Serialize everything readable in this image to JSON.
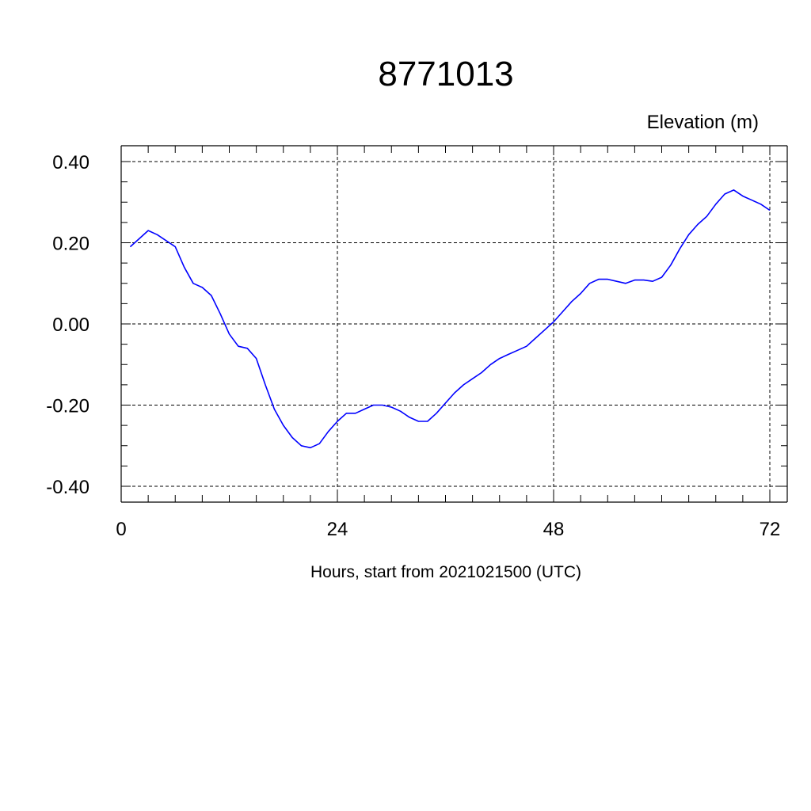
{
  "chart_data": {
    "type": "line",
    "title": "8771013",
    "ylabel": "Elevation (m)",
    "xlabel": "Hours, start from 2021021500 (UTC)",
    "xlim": [
      0,
      72
    ],
    "ylim": [
      -0.4,
      0.4
    ],
    "x_ticks": [
      0,
      24,
      48,
      72
    ],
    "x_tick_labels": [
      "0",
      "24",
      "48",
      "72"
    ],
    "y_ticks": [
      -0.4,
      -0.2,
      0.0,
      0.2,
      0.4
    ],
    "y_tick_labels": [
      "-0.40",
      "-0.20",
      "0.00",
      "0.20",
      "0.40"
    ],
    "grid": true,
    "line_color": "#0000ff",
    "series": [
      {
        "x": [
          1,
          2,
          3,
          4,
          5,
          6,
          7,
          8,
          9,
          10,
          11,
          12,
          13,
          14,
          15,
          16,
          17,
          18,
          19,
          20,
          21,
          22,
          23,
          24,
          25,
          26,
          27,
          28,
          29,
          30,
          31,
          32,
          33,
          34,
          35,
          36,
          37,
          38,
          39,
          40,
          41,
          42,
          43,
          44,
          45,
          46,
          47,
          48,
          49,
          50,
          51,
          52,
          53,
          54,
          55,
          56,
          57,
          58,
          59,
          60,
          61,
          62,
          63,
          64,
          65,
          66,
          67,
          68,
          69,
          70,
          71,
          72
        ],
        "y": [
          0.19,
          0.21,
          0.23,
          0.22,
          0.205,
          0.19,
          0.14,
          0.1,
          0.09,
          0.07,
          0.025,
          -0.025,
          -0.055,
          -0.06,
          -0.085,
          -0.15,
          -0.21,
          -0.25,
          -0.28,
          -0.3,
          -0.305,
          -0.295,
          -0.265,
          -0.24,
          -0.22,
          -0.22,
          -0.21,
          -0.2,
          -0.2,
          -0.205,
          -0.215,
          -0.23,
          -0.24,
          -0.24,
          -0.22,
          -0.195,
          -0.17,
          -0.15,
          -0.135,
          -0.12,
          -0.1,
          -0.085,
          -0.075,
          -0.065,
          -0.055,
          -0.035,
          -0.015,
          0.005,
          0.03,
          0.055,
          0.075,
          0.1,
          0.11,
          0.11,
          0.105,
          0.1,
          0.108,
          0.108,
          0.105,
          0.115,
          0.145,
          0.185,
          0.22,
          0.245,
          0.265,
          0.295,
          0.32,
          0.33,
          0.315,
          0.305,
          0.295,
          0.28
        ]
      }
    ]
  }
}
